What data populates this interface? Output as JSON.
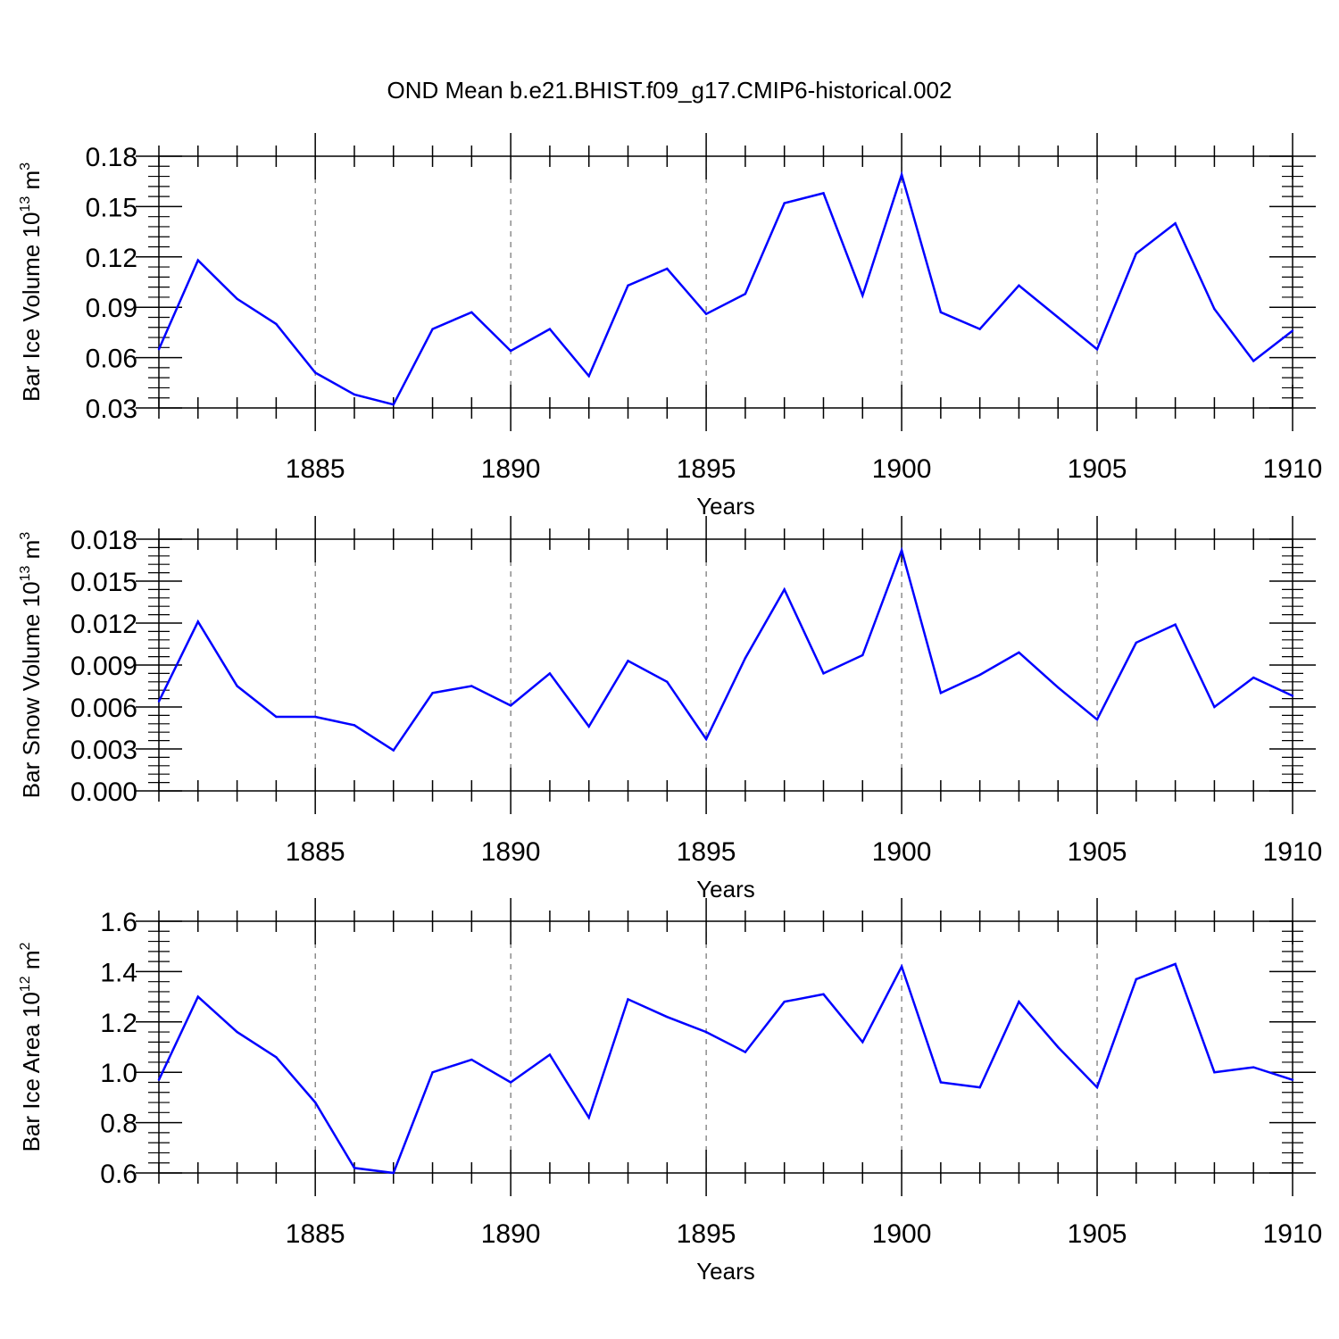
{
  "title": "OND Mean b.e21.BHIST.f09_g17.CMIP6-historical.002",
  "colors": {
    "line": "#0000ff",
    "axis": "#000000",
    "grid": "#555555"
  },
  "chart_data": [
    {
      "type": "line",
      "id": "ice-volume",
      "ylabel_main": "Bar Ice Volume 10",
      "ylabel_exp": "13",
      "ylabel_unit": "m",
      "ylabel_unit_exp": "3",
      "xlabel": "Years",
      "xlim": [
        1881,
        1910
      ],
      "ylim": [
        0.03,
        0.18
      ],
      "yticks": [
        0.03,
        0.06,
        0.09,
        0.12,
        0.15,
        0.18
      ],
      "ytick_labels": [
        "0.03",
        "0.06",
        "0.09",
        "0.12",
        "0.15",
        "0.18"
      ],
      "xticks": [
        1885,
        1890,
        1895,
        1900,
        1905,
        1910
      ],
      "xtick_labels": [
        "1885",
        "1890",
        "1895",
        "1900",
        "1905",
        "1910"
      ],
      "x": [
        1881,
        1882,
        1883,
        1884,
        1885,
        1886,
        1887,
        1888,
        1889,
        1890,
        1891,
        1892,
        1893,
        1894,
        1895,
        1896,
        1897,
        1898,
        1899,
        1900,
        1901,
        1902,
        1903,
        1904,
        1905,
        1906,
        1907,
        1908,
        1909,
        1910
      ],
      "values": [
        0.065,
        0.118,
        0.095,
        0.08,
        0.051,
        0.038,
        0.032,
        0.077,
        0.087,
        0.064,
        0.077,
        0.049,
        0.103,
        0.113,
        0.086,
        0.098,
        0.152,
        0.158,
        0.097,
        0.169,
        0.087,
        0.077,
        0.103,
        0.084,
        0.065,
        0.122,
        0.14,
        0.089,
        0.058,
        0.076
      ]
    },
    {
      "type": "line",
      "id": "snow-volume",
      "ylabel_main": "Bar Snow Volume 10",
      "ylabel_exp": "13",
      "ylabel_unit": "m",
      "ylabel_unit_exp": "3",
      "xlabel": "Years",
      "xlim": [
        1881,
        1910
      ],
      "ylim": [
        0.0,
        0.018
      ],
      "yticks": [
        0.0,
        0.003,
        0.006,
        0.009,
        0.012,
        0.015,
        0.018
      ],
      "ytick_labels": [
        "0.000",
        "0.003",
        "0.006",
        "0.009",
        "0.012",
        "0.015",
        "0.018"
      ],
      "xticks": [
        1885,
        1890,
        1895,
        1900,
        1905,
        1910
      ],
      "xtick_labels": [
        "1885",
        "1890",
        "1895",
        "1900",
        "1905",
        "1910"
      ],
      "x": [
        1881,
        1882,
        1883,
        1884,
        1885,
        1886,
        1887,
        1888,
        1889,
        1890,
        1891,
        1892,
        1893,
        1894,
        1895,
        1896,
        1897,
        1898,
        1899,
        1900,
        1901,
        1902,
        1903,
        1904,
        1905,
        1906,
        1907,
        1908,
        1909,
        1910
      ],
      "values": [
        0.0064,
        0.0121,
        0.0075,
        0.0053,
        0.0053,
        0.0047,
        0.0029,
        0.007,
        0.0075,
        0.0061,
        0.0084,
        0.0046,
        0.0093,
        0.0078,
        0.0037,
        0.0095,
        0.0144,
        0.0084,
        0.0097,
        0.0172,
        0.007,
        0.0083,
        0.0099,
        0.0074,
        0.0051,
        0.0106,
        0.0119,
        0.006,
        0.0081,
        0.0068
      ]
    },
    {
      "type": "line",
      "id": "ice-area",
      "ylabel_main": "Bar Ice Area 10",
      "ylabel_exp": "12",
      "ylabel_unit": "m",
      "ylabel_unit_exp": "2",
      "xlabel": "Years",
      "xlim": [
        1881,
        1910
      ],
      "ylim": [
        0.6,
        1.6
      ],
      "yticks": [
        0.6,
        0.8,
        1.0,
        1.2,
        1.4,
        1.6
      ],
      "ytick_labels": [
        "0.6",
        "0.8",
        "1.0",
        "1.2",
        "1.4",
        "1.6"
      ],
      "xticks": [
        1885,
        1890,
        1895,
        1900,
        1905,
        1910
      ],
      "xtick_labels": [
        "1885",
        "1890",
        "1895",
        "1900",
        "1905",
        "1910"
      ],
      "x": [
        1881,
        1882,
        1883,
        1884,
        1885,
        1886,
        1887,
        1888,
        1889,
        1890,
        1891,
        1892,
        1893,
        1894,
        1895,
        1896,
        1897,
        1898,
        1899,
        1900,
        1901,
        1902,
        1903,
        1904,
        1905,
        1906,
        1907,
        1908,
        1909,
        1910
      ],
      "values": [
        0.97,
        1.3,
        1.16,
        1.06,
        0.88,
        0.62,
        0.6,
        1.0,
        1.05,
        0.96,
        1.07,
        0.82,
        1.29,
        1.22,
        1.16,
        1.08,
        1.28,
        1.31,
        1.12,
        1.42,
        0.96,
        0.94,
        1.28,
        1.1,
        0.94,
        1.37,
        1.43,
        1.0,
        1.02,
        0.97
      ]
    }
  ]
}
